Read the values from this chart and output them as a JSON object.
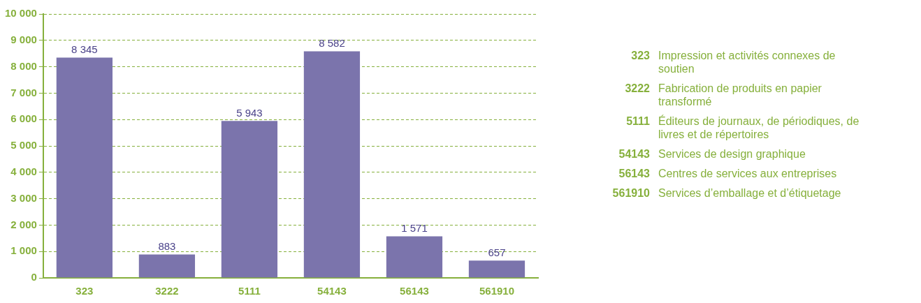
{
  "chart_data": {
    "type": "bar",
    "categories": [
      "323",
      "3222",
      "5111",
      "54143",
      "56143",
      "561910"
    ],
    "values": [
      8345,
      883,
      5943,
      8582,
      1571,
      657
    ],
    "color": "#7b74ac",
    "ylim": [
      0,
      10000
    ],
    "yticks": [
      {
        "value": 0,
        "label": "0"
      },
      {
        "value": 1000,
        "label": "1 000"
      },
      {
        "value": 2000,
        "label": "2 000"
      },
      {
        "value": 3000,
        "label": "3 000"
      },
      {
        "value": 4000,
        "label": "4 000"
      },
      {
        "value": 5000,
        "label": "5 000"
      },
      {
        "value": 6000,
        "label": "6 000"
      },
      {
        "value": 7000,
        "label": "7 000"
      },
      {
        "value": 8000,
        "label": "8 000"
      },
      {
        "value": 9000,
        "label": "9 000"
      },
      {
        "value": 10000,
        "label": "10 000"
      }
    ],
    "grid": "y",
    "data_labels": true,
    "legend": false,
    "annotations": [
      "323 Impression et activités connexes de soutien",
      "3222 Fabrication de produits en papier transformé",
      "5111 Éditeurs de journaux, de périodiques, de livres et de répertoires",
      "54143 Services de design graphique",
      "56143 Centres de services aux entreprises",
      "561910 Services d’emballage et d’étiquetage"
    ]
  }
}
